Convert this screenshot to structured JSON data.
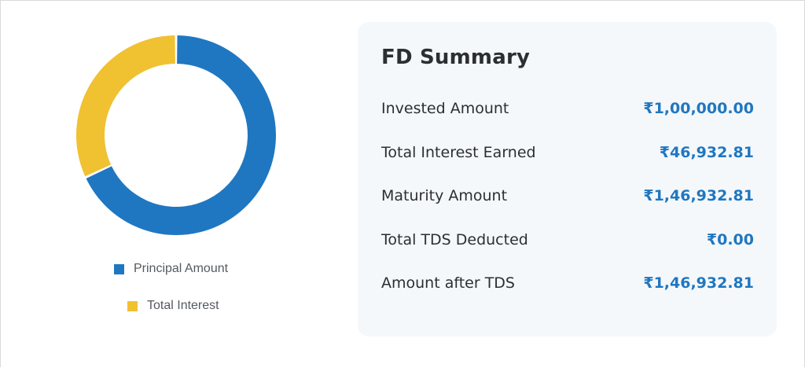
{
  "chart_data": {
    "type": "pie",
    "variant": "donut",
    "categories": [
      "Principal Amount",
      "Total Interest"
    ],
    "values": [
      100000.0,
      46932.81
    ],
    "colors": [
      "#1f77c1",
      "#f0c131"
    ],
    "legend_position": "bottom"
  },
  "legend": {
    "items": [
      {
        "label": "Principal Amount",
        "color": "#1f77c1"
      },
      {
        "label": "Total Interest",
        "color": "#f0c131"
      }
    ]
  },
  "summary": {
    "title": "FD Summary",
    "rows": [
      {
        "label": "Invested Amount",
        "value": "₹1,00,000.00"
      },
      {
        "label": "Total Interest Earned",
        "value": "₹46,932.81"
      },
      {
        "label": "Maturity Amount",
        "value": "₹1,46,932.81"
      },
      {
        "label": "Total TDS Deducted",
        "value": "₹0.00"
      },
      {
        "label": "Amount after TDS",
        "value": "₹1,46,932.81"
      }
    ]
  },
  "colors": {
    "accent": "#1f77c1",
    "interest": "#f0c131",
    "card_background": "#f5f8fb",
    "text": "#2b2f33"
  }
}
